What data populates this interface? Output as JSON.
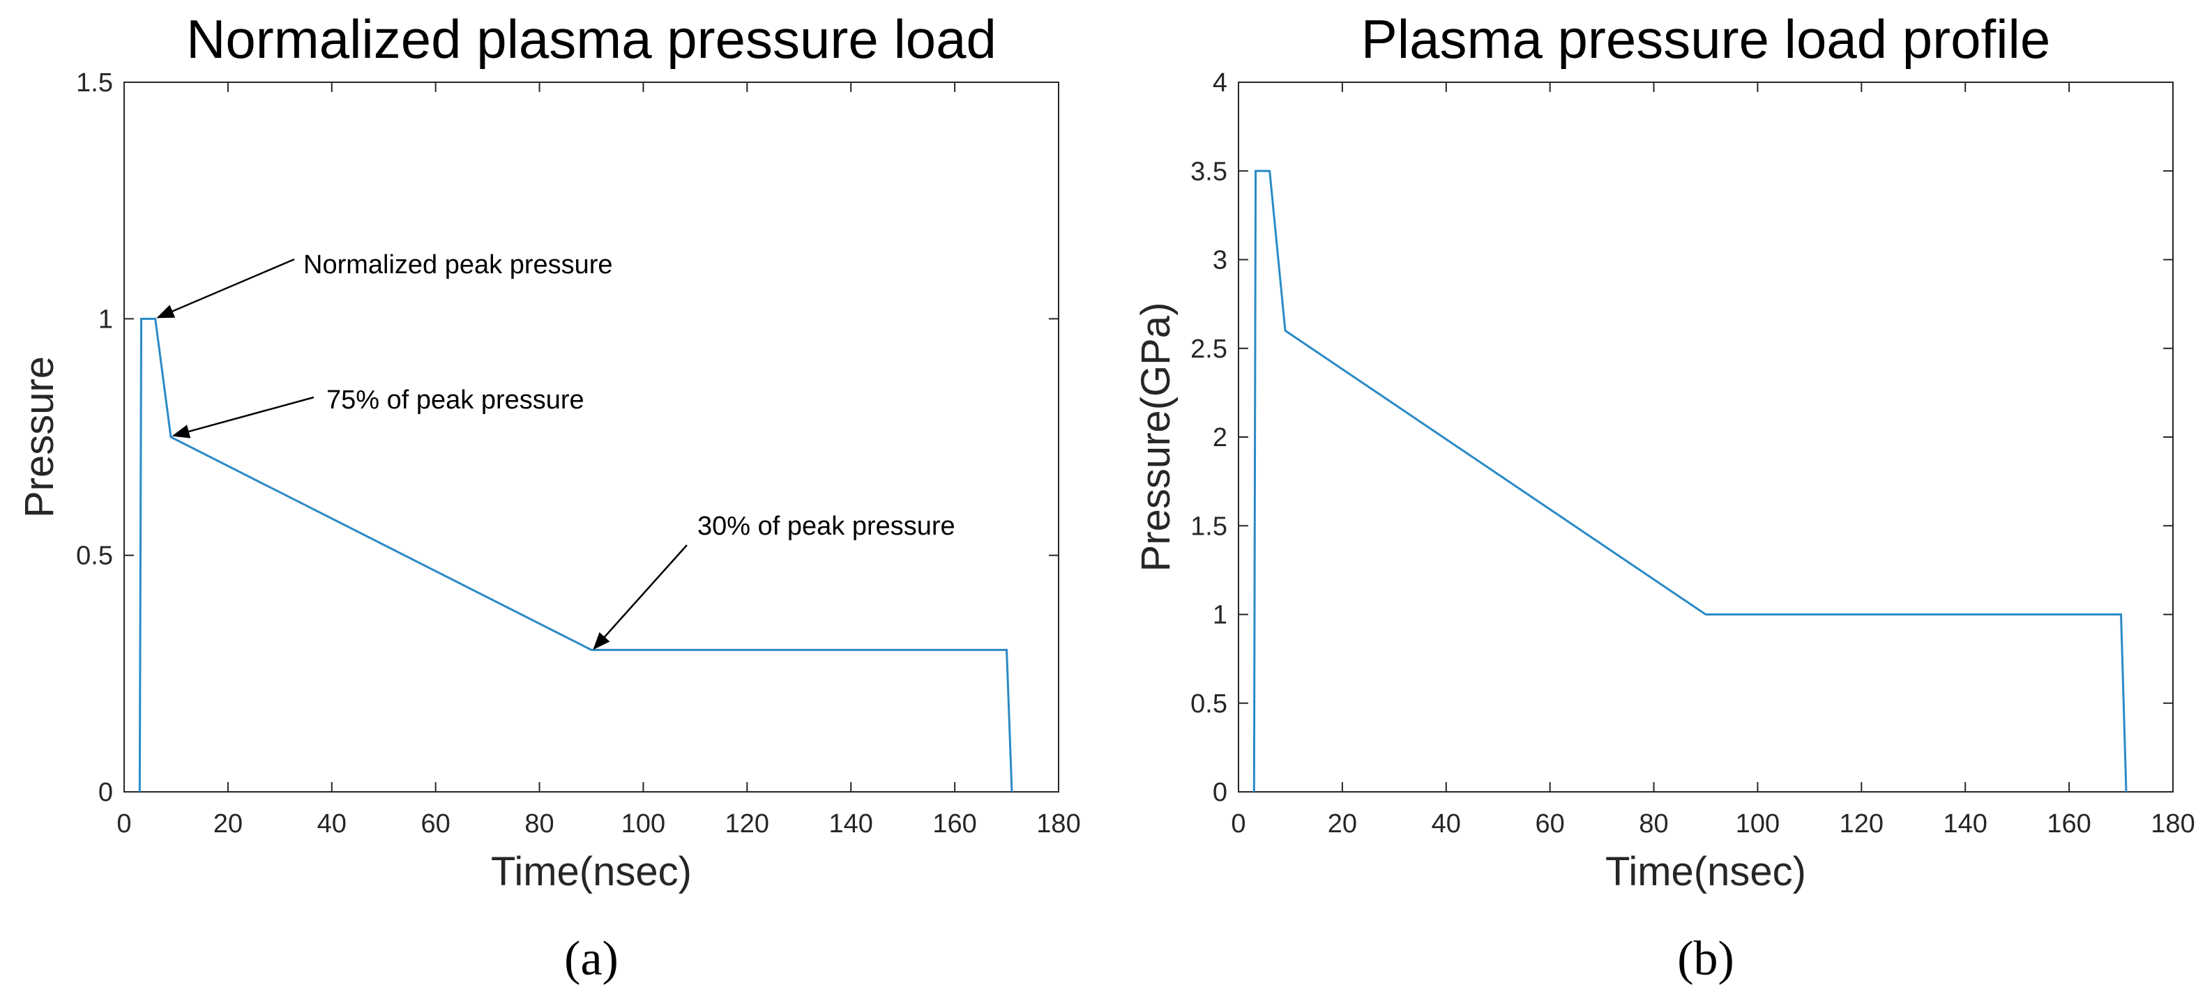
{
  "colors": {
    "series": "#2b8ac6",
    "axis": "#262626",
    "annotation_arrow": "#000000"
  },
  "chart_data": [
    {
      "type": "line",
      "caption": "(a)",
      "title": "Normalized plasma pressure load",
      "xlabel": "Time(nsec)",
      "ylabel": "Pressure",
      "xlim": [
        0,
        180
      ],
      "ylim": [
        0,
        1.5
      ],
      "xticks": [
        "0",
        "20",
        "40",
        "60",
        "80",
        "100",
        "120",
        "140",
        "160",
        "180"
      ],
      "yticks": [
        "0",
        "0.5",
        "1",
        "1.5"
      ],
      "grid": false,
      "series": [
        {
          "name": "Normalized pressure",
          "x": [
            3,
            3.3,
            6,
            9,
            90,
            170,
            171
          ],
          "y": [
            0,
            1,
            1,
            0.75,
            0.3,
            0.3,
            0
          ]
        }
      ],
      "annotations": [
        {
          "text": "Normalized peak pressure",
          "point": [
            6,
            1
          ]
        },
        {
          "text": "75% of peak pressure",
          "point": [
            9,
            0.75
          ]
        },
        {
          "text": "30% of peak pressure",
          "point": [
            90,
            0.3
          ]
        }
      ]
    },
    {
      "type": "line",
      "caption": "(b)",
      "title": "Plasma pressure load profile",
      "xlabel": "Time(nsec)",
      "ylabel": "Pressure(GPa)",
      "xlim": [
        0,
        180
      ],
      "ylim": [
        0,
        4
      ],
      "xticks": [
        "0",
        "20",
        "40",
        "60",
        "80",
        "100",
        "120",
        "140",
        "160",
        "180"
      ],
      "yticks": [
        "0",
        "0.5",
        "1",
        "1.5",
        "2",
        "2.5",
        "3",
        "3.5",
        "4"
      ],
      "grid": false,
      "series": [
        {
          "name": "Pressure",
          "x": [
            3,
            3.3,
            6,
            9,
            90,
            170,
            171
          ],
          "y": [
            0,
            3.5,
            3.5,
            2.6,
            1,
            1,
            0
          ]
        }
      ],
      "annotations": []
    }
  ]
}
